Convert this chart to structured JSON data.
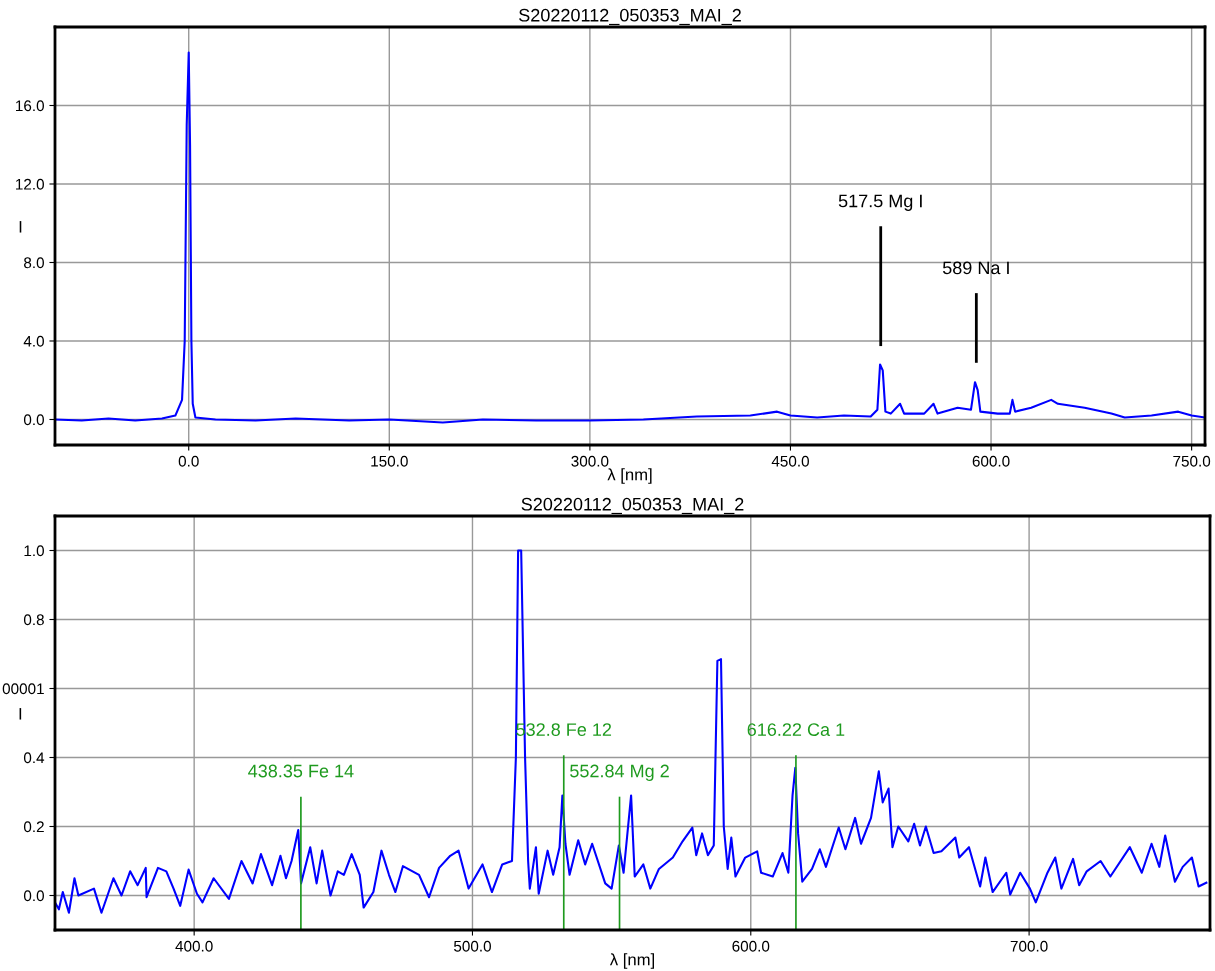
{
  "chart_data": [
    {
      "type": "line",
      "title": "S20220112_050353_MAI_2",
      "xlabel": "λ [nm]",
      "ylabel": "I",
      "grid": true,
      "marker": "none",
      "line_style": "solid",
      "xlim": [
        -100,
        760
      ],
      "ylim": [
        -1.3,
        20
      ],
      "xticks": [
        {
          "value": 0,
          "label": "0.0"
        },
        {
          "value": 150,
          "label": "150.0"
        },
        {
          "value": 300,
          "label": "300.0"
        },
        {
          "value": 450,
          "label": "450.0"
        },
        {
          "value": 600,
          "label": "600.0"
        },
        {
          "value": 750,
          "label": "750.0"
        }
      ],
      "yticks": [
        {
          "value": 0,
          "label": "0.0"
        },
        {
          "value": 4,
          "label": "4.0"
        },
        {
          "value": 8,
          "label": "8.0"
        },
        {
          "value": 12,
          "label": "12.0"
        },
        {
          "value": 16,
          "label": "16.0"
        }
      ],
      "ref_lines": [
        {
          "axis": "x",
          "value": 517.5,
          "label": "517.5 Mg I",
          "color": "#000000"
        },
        {
          "axis": "x",
          "value": 589,
          "label": "589 Na I",
          "color": "#000000"
        }
      ],
      "series": [
        {
          "color": "#0000ff",
          "x": [
            -100,
            -80,
            -60,
            -40,
            -20,
            -10,
            -5,
            -3,
            -1.5,
            0,
            1,
            2,
            3,
            5,
            20,
            50,
            80,
            120,
            150,
            190,
            220,
            260,
            300,
            340,
            380,
            420,
            440,
            450,
            470,
            490,
            510,
            515,
            517,
            519,
            521,
            525,
            532,
            535,
            550,
            557,
            560,
            575,
            585,
            588,
            590,
            592,
            605,
            614,
            616,
            618,
            630,
            645,
            650,
            670,
            690,
            700,
            720,
            740,
            750,
            760
          ],
          "values": [
            0.0,
            -0.05,
            0.05,
            -0.05,
            0.05,
            0.2,
            1.0,
            4.0,
            15.0,
            18.7,
            14,
            4,
            0.8,
            0.1,
            0.0,
            -0.05,
            0.05,
            -0.05,
            0.0,
            -0.15,
            0.0,
            -0.05,
            -0.05,
            0.0,
            0.15,
            0.2,
            0.4,
            0.2,
            0.1,
            0.2,
            0.15,
            0.5,
            2.8,
            2.5,
            0.4,
            0.3,
            0.8,
            0.3,
            0.3,
            0.8,
            0.3,
            0.6,
            0.5,
            1.9,
            1.5,
            0.4,
            0.3,
            0.3,
            1.0,
            0.4,
            0.6,
            1.0,
            0.8,
            0.6,
            0.3,
            0.1,
            0.2,
            0.4,
            0.2,
            0.1
          ]
        }
      ]
    },
    {
      "type": "line",
      "title": "S20220112_050353_MAI_2",
      "xlabel": "λ [nm]",
      "ylabel": "I",
      "grid": true,
      "marker": "none",
      "line_style": "solid",
      "xlim": [
        350,
        765
      ],
      "ylim": [
        -0.1,
        1.1
      ],
      "xticks": [
        {
          "value": 400,
          "label": "400.0"
        },
        {
          "value": 500,
          "label": "500.0"
        },
        {
          "value": 600,
          "label": "600.0"
        },
        {
          "value": 700,
          "label": "700.0"
        }
      ],
      "yticks": [
        {
          "value": 0,
          "label": "0.0"
        },
        {
          "value": 0.2,
          "label": "0.2"
        },
        {
          "value": 0.4,
          "label": "0.4"
        },
        {
          "value": 0.6,
          "label": "00001"
        },
        {
          "value": 0.8,
          "label": "0.8"
        },
        {
          "value": 1.0,
          "label": "1.0"
        }
      ],
      "ref_lines": [
        {
          "axis": "x",
          "value": 438.35,
          "label": "438.35 Fe 14",
          "color": "#1e9a1e"
        },
        {
          "axis": "x",
          "value": 532.8,
          "label": "532.8 Fe 12",
          "color": "#1e9a1e"
        },
        {
          "axis": "x",
          "value": 552.84,
          "label": "552.84 Mg 2",
          "color": "#1e9a1e"
        },
        {
          "axis": "x",
          "value": 616.22,
          "label": "616.22 Ca 1",
          "color": "#1e9a1e"
        }
      ],
      "series": [
        {
          "color": "#0000ff",
          "x": [
            350,
            351.4,
            352.8,
            355,
            357,
            358.4,
            364,
            366.7,
            371,
            373.9,
            377,
            379.7,
            382.6,
            382.9,
            387,
            390,
            392.6,
            395,
            398,
            401,
            403,
            407,
            412.5,
            417,
            421,
            424,
            428,
            431,
            433,
            435,
            437.4,
            438.4,
            441.7,
            444,
            446,
            449,
            451.6,
            453.8,
            456.6,
            459.5,
            460.9,
            464.4,
            467.3,
            470,
            472.3,
            475,
            480.8,
            484.4,
            488,
            492,
            495,
            498.6,
            503.6,
            507,
            510.7,
            514.2,
            515.6,
            516.4,
            517.5,
            518.9,
            520,
            520.6,
            522.8,
            523.8,
            527,
            529,
            531.3,
            532.3,
            533.4,
            534.9,
            538,
            540.5,
            543,
            547.7,
            550,
            552.6,
            554.3,
            557,
            558.3,
            561.4,
            563.9,
            567,
            572,
            575.5,
            579,
            580.4,
            582.5,
            584.6,
            586.7,
            588,
            589.3,
            590.3,
            591.7,
            593,
            594.5,
            598,
            602.3,
            603.7,
            607.9,
            611.4,
            613.5,
            615,
            616,
            617,
            618.5,
            622,
            624.8,
            627,
            631.6,
            634,
            637.5,
            639.6,
            643.2,
            646,
            647.4,
            649.5,
            650.9,
            653,
            656.6,
            658.7,
            660.8,
            662.9,
            665.7,
            668.5,
            673.5,
            674.9,
            678.4,
            682.4,
            684.3,
            686.9,
            691.8,
            693.2,
            696.8,
            700.3,
            702.4,
            706.6,
            709.4,
            711.6,
            715.8,
            718,
            720.7,
            725.7,
            729.2,
            736.2,
            740.5,
            744,
            746.8,
            748.9,
            752.4,
            755.2,
            758.5,
            760.9,
            763.7
          ],
          "values": [
            -0.02,
            -0.04,
            0.01,
            -0.05,
            0.05,
            0.0,
            0.02,
            -0.05,
            0.05,
            0.0,
            0.07,
            0.03,
            0.08,
            -0.005,
            0.08,
            0.07,
            0.02,
            -0.03,
            0.075,
            0.005,
            -0.02,
            0.05,
            -0.01,
            0.1,
            0.035,
            0.12,
            0.03,
            0.115,
            0.05,
            0.1,
            0.19,
            0.035,
            0.14,
            0.035,
            0.13,
            0.0,
            0.07,
            0.06,
            0.12,
            0.06,
            -0.035,
            0.01,
            0.13,
            0.06,
            0.01,
            0.085,
            0.06,
            -0.005,
            0.08,
            0.115,
            0.13,
            0.02,
            0.09,
            0.01,
            0.09,
            0.1,
            0.4,
            1.0,
            1.0,
            0.4,
            0.1,
            0.02,
            0.14,
            0.005,
            0.13,
            0.06,
            0.14,
            0.29,
            0.15,
            0.06,
            0.16,
            0.09,
            0.15,
            0.035,
            0.02,
            0.145,
            0.066,
            0.29,
            0.055,
            0.09,
            0.02,
            0.077,
            0.11,
            0.157,
            0.197,
            0.117,
            0.18,
            0.117,
            0.145,
            0.68,
            0.685,
            0.2,
            0.077,
            0.168,
            0.055,
            0.11,
            0.128,
            0.066,
            0.055,
            0.123,
            0.066,
            0.29,
            0.37,
            0.18,
            0.04,
            0.077,
            0.134,
            0.083,
            0.197,
            0.134,
            0.225,
            0.15,
            0.225,
            0.36,
            0.27,
            0.31,
            0.14,
            0.2,
            0.157,
            0.208,
            0.145,
            0.2,
            0.123,
            0.128,
            0.168,
            0.11,
            0.14,
            0.026,
            0.11,
            0.01,
            0.066,
            0.003,
            0.066,
            0.02,
            -0.02,
            0.066,
            0.11,
            0.02,
            0.106,
            0.03,
            0.07,
            0.1,
            0.055,
            0.14,
            0.066,
            0.15,
            0.083,
            0.174,
            0.04,
            0.083,
            0.11,
            0.026,
            0.037
          ]
        }
      ]
    }
  ]
}
